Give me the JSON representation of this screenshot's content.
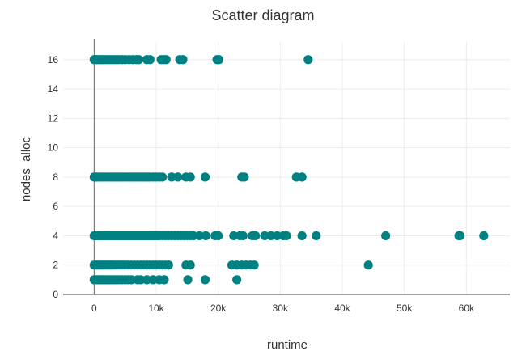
{
  "chart_data": {
    "type": "scatter",
    "title": "Scatter diagram",
    "xlabel": "runtime",
    "ylabel": "nodes_alloc",
    "xlim": [
      -5000,
      67000
    ],
    "ylim": [
      0,
      17.2
    ],
    "x_ticks": [
      0,
      10000,
      20000,
      30000,
      40000,
      50000,
      60000
    ],
    "x_tick_labels": [
      "0",
      "10k",
      "20k",
      "30k",
      "40k",
      "50k",
      "60k"
    ],
    "y_ticks": [
      0,
      2,
      4,
      6,
      8,
      10,
      12,
      14,
      16
    ],
    "y_tick_labels": [
      "0",
      "2",
      "4",
      "6",
      "8",
      "10",
      "12",
      "14",
      "16"
    ],
    "grid": true,
    "marker_color": "#008080",
    "series": [
      {
        "points": [
          [
            0,
            16
          ],
          [
            200,
            16
          ],
          [
            400,
            16
          ],
          [
            700,
            16
          ],
          [
            1000,
            16
          ],
          [
            1300,
            16
          ],
          [
            1600,
            16
          ],
          [
            2000,
            16
          ],
          [
            2400,
            16
          ],
          [
            2800,
            16
          ],
          [
            3200,
            16
          ],
          [
            3600,
            16
          ],
          [
            4000,
            16
          ],
          [
            4500,
            16
          ],
          [
            5000,
            16
          ],
          [
            5600,
            16
          ],
          [
            6200,
            16
          ],
          [
            6800,
            16
          ],
          [
            7200,
            16
          ],
          [
            8500,
            16
          ],
          [
            9000,
            16
          ],
          [
            10800,
            16
          ],
          [
            11200,
            16
          ],
          [
            11600,
            16
          ],
          [
            13800,
            16
          ],
          [
            14300,
            16
          ],
          [
            19800,
            16
          ],
          [
            20100,
            16
          ],
          [
            34500,
            16
          ],
          [
            0,
            8
          ],
          [
            300,
            8
          ],
          [
            600,
            8
          ],
          [
            1000,
            8
          ],
          [
            1400,
            8
          ],
          [
            1800,
            8
          ],
          [
            2200,
            8
          ],
          [
            2600,
            8
          ],
          [
            3000,
            8
          ],
          [
            3400,
            8
          ],
          [
            3800,
            8
          ],
          [
            4200,
            8
          ],
          [
            4600,
            8
          ],
          [
            5000,
            8
          ],
          [
            5400,
            8
          ],
          [
            5800,
            8
          ],
          [
            6200,
            8
          ],
          [
            6600,
            8
          ],
          [
            7000,
            8
          ],
          [
            7400,
            8
          ],
          [
            7800,
            8
          ],
          [
            8200,
            8
          ],
          [
            8600,
            8
          ],
          [
            9000,
            8
          ],
          [
            9500,
            8
          ],
          [
            10000,
            8
          ],
          [
            10500,
            8
          ],
          [
            11000,
            8
          ],
          [
            12500,
            8
          ],
          [
            13500,
            8
          ],
          [
            14800,
            8
          ],
          [
            15500,
            8
          ],
          [
            17900,
            8
          ],
          [
            23800,
            8
          ],
          [
            24200,
            8
          ],
          [
            32600,
            8
          ],
          [
            33500,
            8
          ],
          [
            0,
            4
          ],
          [
            300,
            4
          ],
          [
            600,
            4
          ],
          [
            900,
            4
          ],
          [
            1200,
            4
          ],
          [
            1500,
            4
          ],
          [
            1800,
            4
          ],
          [
            2100,
            4
          ],
          [
            2400,
            4
          ],
          [
            2700,
            4
          ],
          [
            3000,
            4
          ],
          [
            3300,
            4
          ],
          [
            3600,
            4
          ],
          [
            3900,
            4
          ],
          [
            4200,
            4
          ],
          [
            4500,
            4
          ],
          [
            4800,
            4
          ],
          [
            5100,
            4
          ],
          [
            5400,
            4
          ],
          [
            5700,
            4
          ],
          [
            6000,
            4
          ],
          [
            6300,
            4
          ],
          [
            6600,
            4
          ],
          [
            6900,
            4
          ],
          [
            7200,
            4
          ],
          [
            7500,
            4
          ],
          [
            7800,
            4
          ],
          [
            8100,
            4
          ],
          [
            8400,
            4
          ],
          [
            8700,
            4
          ],
          [
            9000,
            4
          ],
          [
            9300,
            4
          ],
          [
            9600,
            4
          ],
          [
            9900,
            4
          ],
          [
            10200,
            4
          ],
          [
            10500,
            4
          ],
          [
            11000,
            4
          ],
          [
            11500,
            4
          ],
          [
            12000,
            4
          ],
          [
            12500,
            4
          ],
          [
            13000,
            4
          ],
          [
            13500,
            4
          ],
          [
            14000,
            4
          ],
          [
            14500,
            4
          ],
          [
            15000,
            4
          ],
          [
            15500,
            4
          ],
          [
            16000,
            4
          ],
          [
            17000,
            4
          ],
          [
            18000,
            4
          ],
          [
            19500,
            4
          ],
          [
            20000,
            4
          ],
          [
            22500,
            4
          ],
          [
            23500,
            4
          ],
          [
            24000,
            4
          ],
          [
            25500,
            4
          ],
          [
            26000,
            4
          ],
          [
            27500,
            4
          ],
          [
            28500,
            4
          ],
          [
            29500,
            4
          ],
          [
            30500,
            4
          ],
          [
            31000,
            4
          ],
          [
            33500,
            4
          ],
          [
            35800,
            4
          ],
          [
            47000,
            4
          ],
          [
            58800,
            4
          ],
          [
            59000,
            4
          ],
          [
            62800,
            4
          ],
          [
            0,
            2
          ],
          [
            300,
            2
          ],
          [
            600,
            2
          ],
          [
            900,
            2
          ],
          [
            1200,
            2
          ],
          [
            1500,
            2
          ],
          [
            1800,
            2
          ],
          [
            2100,
            2
          ],
          [
            2400,
            2
          ],
          [
            2700,
            2
          ],
          [
            3000,
            2
          ],
          [
            3400,
            2
          ],
          [
            3800,
            2
          ],
          [
            4200,
            2
          ],
          [
            4600,
            2
          ],
          [
            5000,
            2
          ],
          [
            5500,
            2
          ],
          [
            6000,
            2
          ],
          [
            6500,
            2
          ],
          [
            7000,
            2
          ],
          [
            7500,
            2
          ],
          [
            8000,
            2
          ],
          [
            8500,
            2
          ],
          [
            9000,
            2
          ],
          [
            9500,
            2
          ],
          [
            10000,
            2
          ],
          [
            10500,
            2
          ],
          [
            11000,
            2
          ],
          [
            11500,
            2
          ],
          [
            12000,
            2
          ],
          [
            14800,
            2
          ],
          [
            15500,
            2
          ],
          [
            22200,
            2
          ],
          [
            23000,
            2
          ],
          [
            23800,
            2
          ],
          [
            24500,
            2
          ],
          [
            25200,
            2
          ],
          [
            25800,
            2
          ],
          [
            44200,
            2
          ],
          [
            0,
            1
          ],
          [
            300,
            1
          ],
          [
            600,
            1
          ],
          [
            900,
            1
          ],
          [
            1200,
            1
          ],
          [
            1500,
            1
          ],
          [
            1800,
            1
          ],
          [
            2100,
            1
          ],
          [
            2400,
            1
          ],
          [
            2800,
            1
          ],
          [
            3200,
            1
          ],
          [
            3600,
            1
          ],
          [
            4000,
            1
          ],
          [
            4500,
            1
          ],
          [
            5000,
            1
          ],
          [
            5500,
            1
          ],
          [
            6000,
            1
          ],
          [
            7000,
            1
          ],
          [
            7500,
            1
          ],
          [
            8500,
            1
          ],
          [
            9500,
            1
          ],
          [
            10500,
            1
          ],
          [
            11300,
            1
          ],
          [
            15100,
            1
          ],
          [
            17900,
            1
          ],
          [
            23000,
            1
          ]
        ]
      }
    ]
  }
}
